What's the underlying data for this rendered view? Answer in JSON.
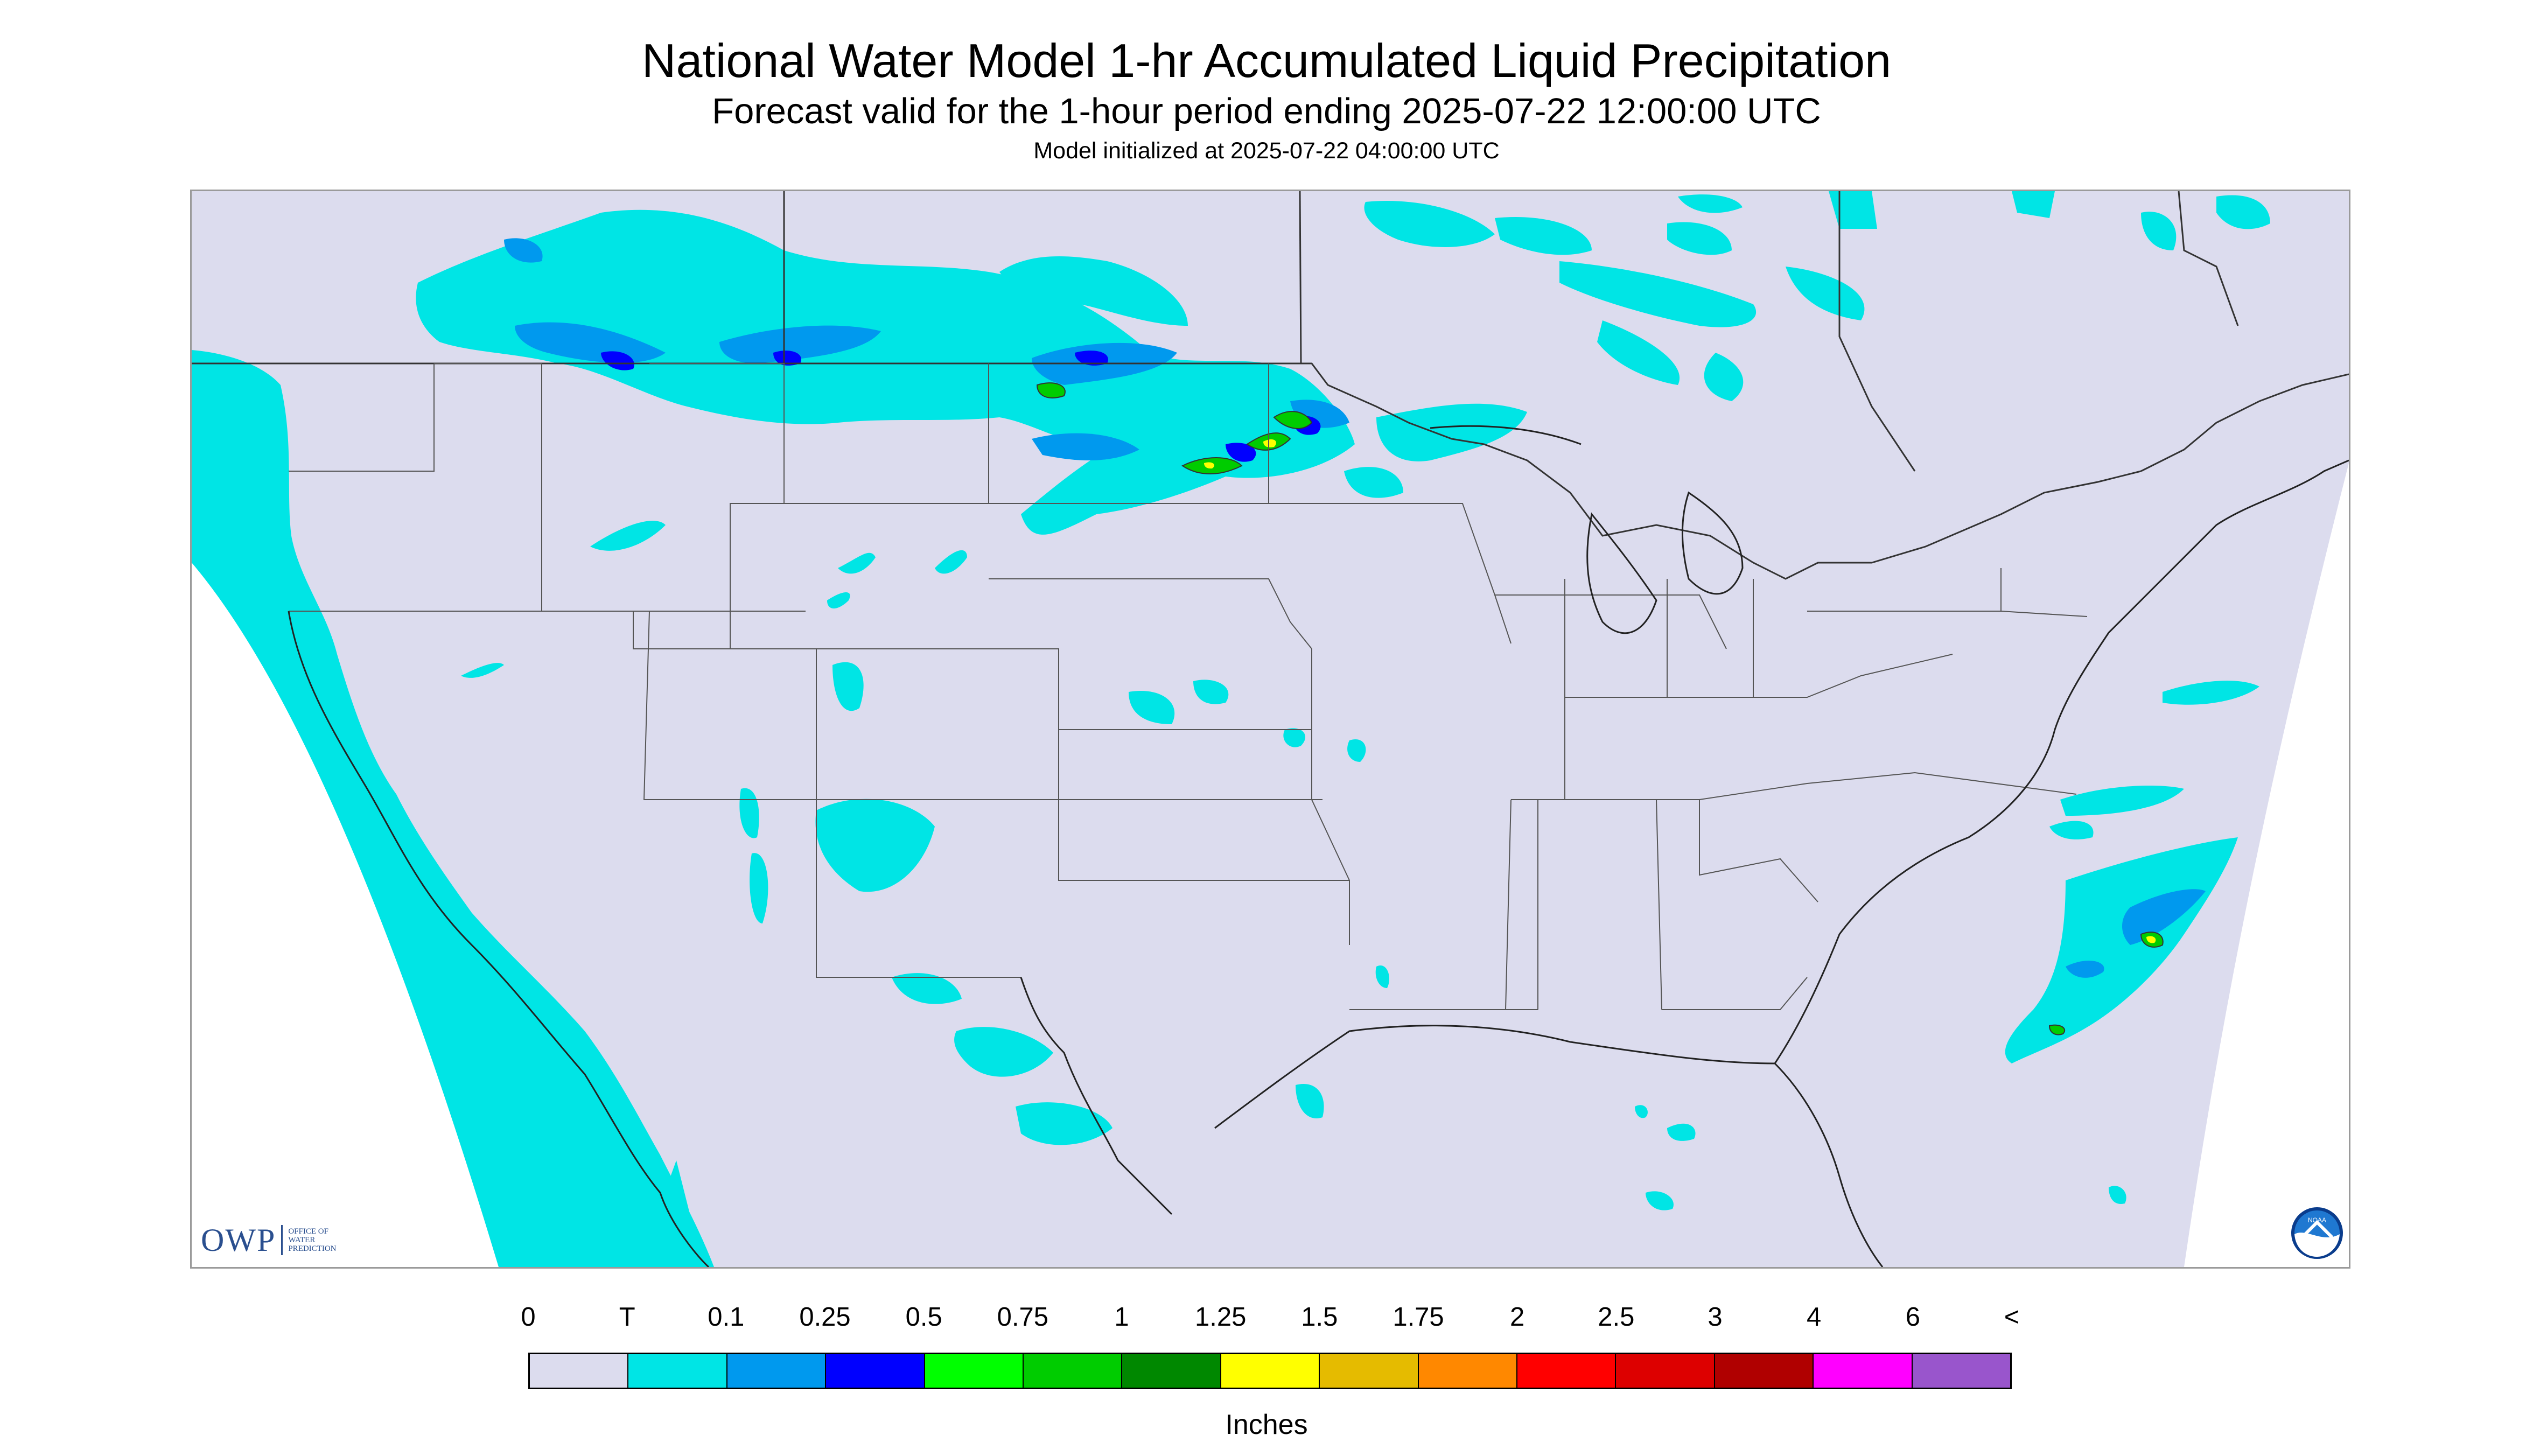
{
  "header": {
    "title": "National Water Model 1-hr Accumulated Liquid Precipitation",
    "subtitle": "Forecast valid for the 1-hour period ending 2025-07-22 12:00:00 UTC",
    "init": "Model initialized at 2025-07-22 04:00:00 UTC"
  },
  "map": {
    "background_color": "#dcdcee",
    "outside_domain_color": "#ffffff",
    "border_color": "#333333",
    "precip_colors": {
      "trace": "#00e5e5",
      "light_blue": "#0099ee",
      "blue": "#0000ff",
      "green": "#00ee00",
      "dark_green": "#00aa00",
      "yellow": "#ffff00"
    },
    "precip_areas": [
      "Southern Canada prairies (broad trace band, 0.1-0.5 in embedded)",
      "North Dakota / Minnesota (0.5-1.5 in cells)",
      "Pacific Ocean off California (trace)",
      "Atlantic Ocean off Carolinas (trace to 1.5 in)"
    ]
  },
  "logos": {
    "owp_letters": "OWP",
    "owp_lines": [
      "Office of",
      "Water",
      "Prediction"
    ],
    "noaa_text": "NOAA"
  },
  "legend": {
    "labels": [
      "0",
      "T",
      "0.1",
      "0.25",
      "0.5",
      "0.75",
      "1",
      "1.25",
      "1.5",
      "1.75",
      "2",
      "2.5",
      "3",
      "4",
      "6",
      "<"
    ],
    "colors": [
      "#dcdcee",
      "#00e5e5",
      "#0099ee",
      "#0000ff",
      "#00ff00",
      "#00cc00",
      "#008800",
      "#ffff00",
      "#e5bb00",
      "#ff8800",
      "#ff0000",
      "#dd0000",
      "#b00000",
      "#ff00ff",
      "#9955cc"
    ],
    "units": "Inches"
  }
}
